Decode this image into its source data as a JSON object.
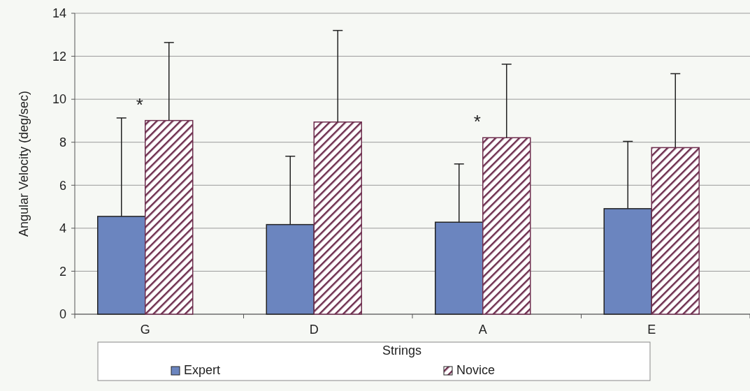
{
  "chart_data": {
    "type": "bar",
    "xlabel": "Strings",
    "ylabel": "Angular Velocity (deg/sec)",
    "categories": [
      "G",
      "D",
      "A",
      "E"
    ],
    "series": [
      {
        "name": "Expert",
        "color": "#6b85bf",
        "values": [
          4.55,
          4.17,
          4.28,
          4.91
        ],
        "errors": [
          [
            4.55,
            9.13
          ],
          [
            4.17,
            7.35
          ],
          [
            4.28,
            6.99
          ],
          [
            4.91,
            8.04
          ]
        ]
      },
      {
        "name": "Novice",
        "color": "#6e2e4e",
        "values": [
          9.01,
          8.94,
          8.21,
          7.75
        ],
        "errors": [
          [
            9.01,
            12.64
          ],
          [
            8.94,
            13.2
          ],
          [
            8.21,
            11.63
          ],
          [
            7.75,
            11.19
          ]
        ]
      }
    ],
    "ylim": [
      0,
      14
    ],
    "yticks": [
      0,
      2,
      4,
      6,
      8,
      10,
      12,
      14
    ],
    "grid": "y",
    "legend": "bottom",
    "annotations": [
      {
        "text": "*",
        "x": "G",
        "y": 9.01
      },
      {
        "text": "*",
        "x": "A",
        "y": 8.21
      }
    ]
  }
}
